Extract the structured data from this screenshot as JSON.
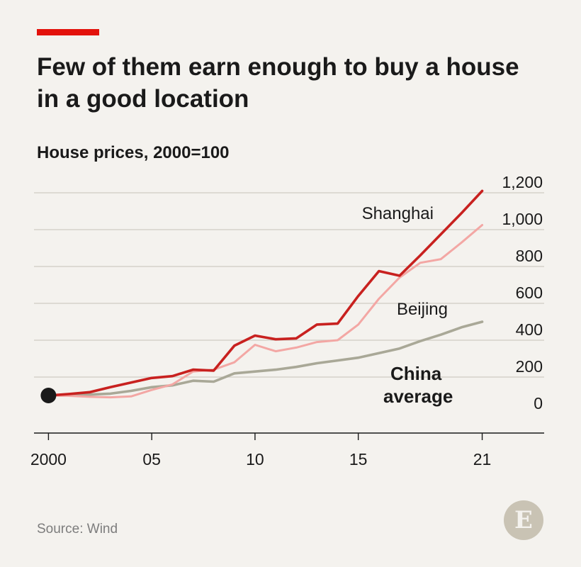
{
  "header": {
    "title": "Few of them earn enough to buy a house in a good location",
    "subtitle": "House prices, 2000=100",
    "accent_color": "#e3120b"
  },
  "footer": {
    "source": "Source: Wind",
    "logo_letter": "E"
  },
  "chart_data": {
    "type": "line",
    "title": "",
    "xlabel": "",
    "ylabel": "",
    "x": [
      2000,
      2001,
      2002,
      2003,
      2004,
      2005,
      2006,
      2007,
      2008,
      2009,
      2010,
      2011,
      2012,
      2013,
      2014,
      2015,
      2016,
      2017,
      2018,
      2019,
      2020,
      2021
    ],
    "xlim": [
      1999.3,
      2024
    ],
    "ylim": [
      0,
      1200
    ],
    "grid": true,
    "x_ticks": [
      {
        "value": 2000,
        "label": "2000"
      },
      {
        "value": 2005,
        "label": "05"
      },
      {
        "value": 2010,
        "label": "10"
      },
      {
        "value": 2015,
        "label": "15"
      },
      {
        "value": 2021,
        "label": "21"
      }
    ],
    "y_ticks": [
      {
        "value": 0,
        "label": "0"
      },
      {
        "value": 200,
        "label": "200"
      },
      {
        "value": 400,
        "label": "400"
      },
      {
        "value": 600,
        "label": "600"
      },
      {
        "value": 800,
        "label": "800"
      },
      {
        "value": 1000,
        "label": "1,000"
      },
      {
        "value": 1200,
        "label": "1,200"
      }
    ],
    "series": [
      {
        "name": "Shanghai",
        "label": "Shanghai",
        "color": "#c8211f",
        "values": [
          100,
          108,
          118,
          145,
          170,
          195,
          205,
          240,
          235,
          370,
          425,
          405,
          410,
          485,
          490,
          640,
          775,
          750,
          860,
          975,
          1090,
          1210
        ]
      },
      {
        "name": "Beijing",
        "label": "Beijing",
        "color": "#f3a7a4",
        "values": [
          100,
          98,
          93,
          90,
          95,
          130,
          160,
          230,
          240,
          280,
          375,
          340,
          360,
          390,
          400,
          485,
          625,
          740,
          820,
          840,
          930,
          1025
        ]
      },
      {
        "name": "China average",
        "label": "China average",
        "color": "#a9a897",
        "values": [
          100,
          102,
          105,
          110,
          125,
          145,
          155,
          180,
          175,
          220,
          230,
          240,
          255,
          275,
          290,
          305,
          330,
          355,
          395,
          430,
          470,
          500
        ]
      }
    ],
    "start_marker": {
      "x": 2000,
      "value": 100,
      "color": "#1a1a1a"
    }
  }
}
